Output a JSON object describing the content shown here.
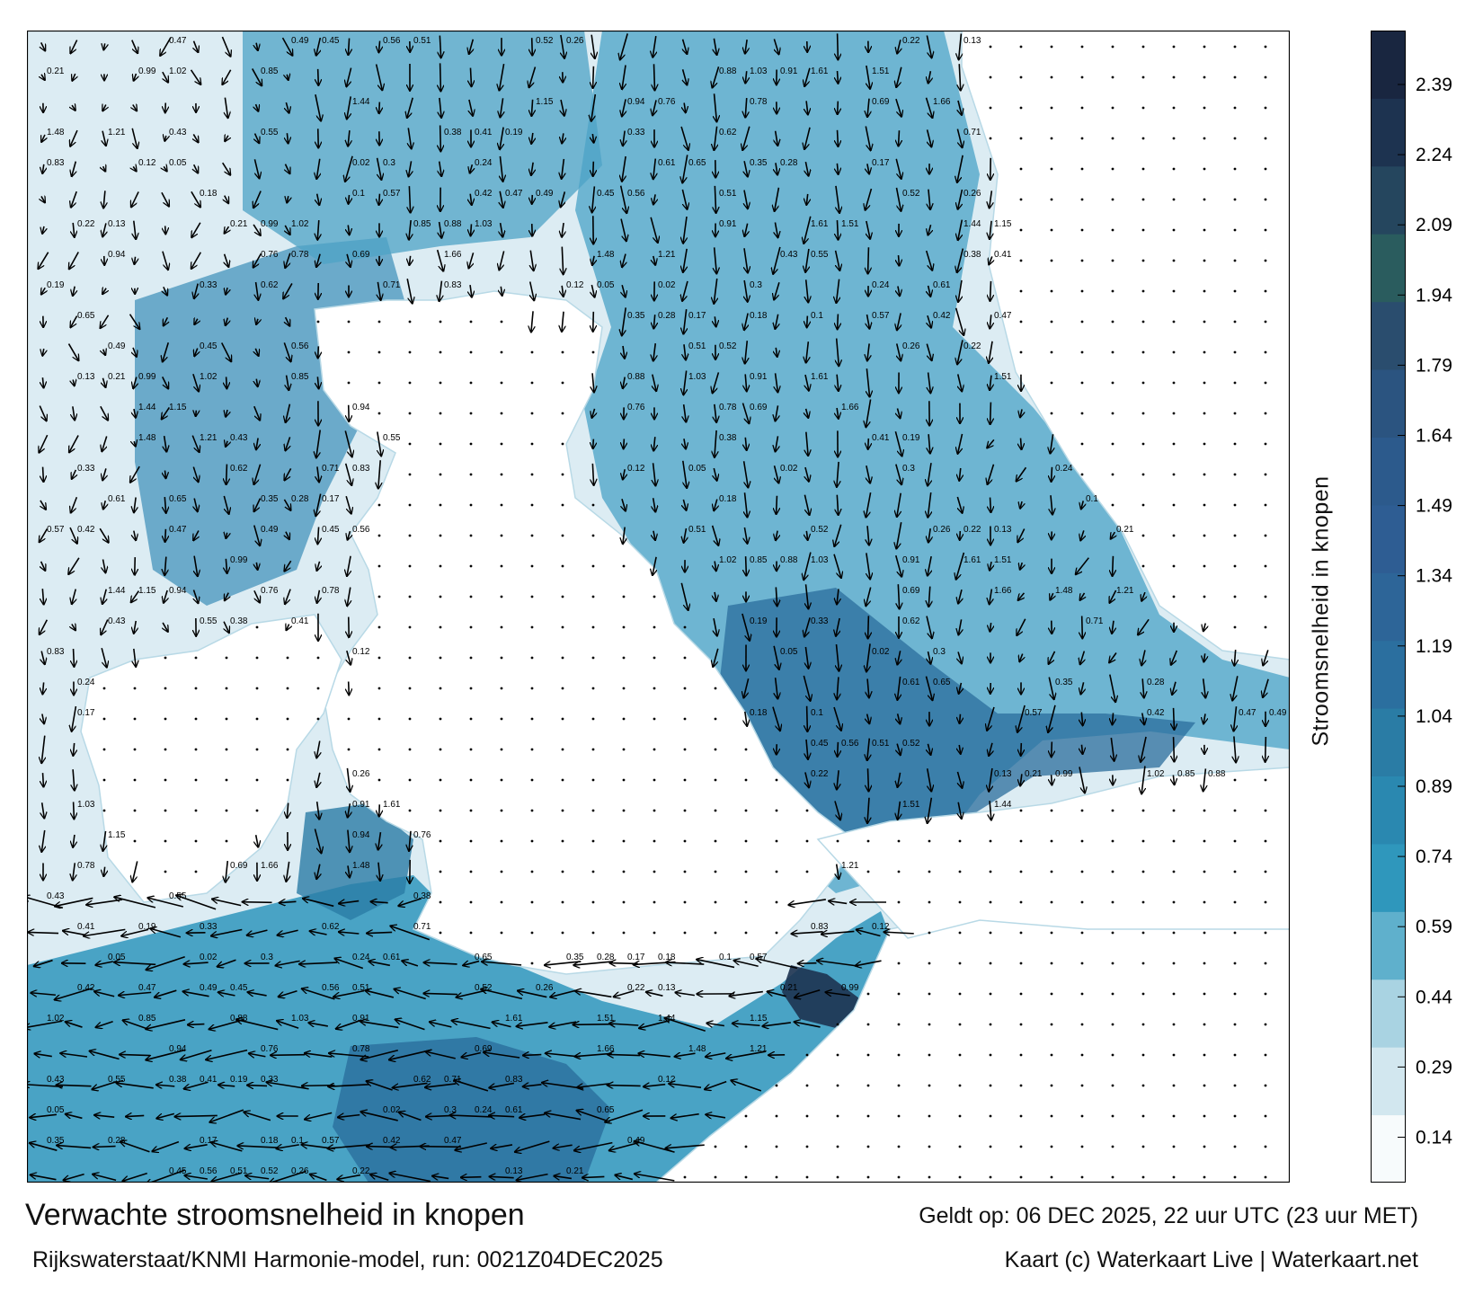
{
  "title": "Verwachte stroomsnelheid in knopen",
  "valid_time": "Geldt op: 06 DEC 2025, 22 uur UTC (23 uur MET)",
  "model_run": "Rijkswaterstaat/KNMI Harmonie-model, run: 0021Z04DEC2025",
  "credit": "Kaart (c) Waterkaart Live | Waterkaart.net",
  "colorbar": {
    "label": "Stroomsnelheid in knopen",
    "ticks": [
      "2.39",
      "2.24",
      "2.09",
      "1.94",
      "1.79",
      "1.64",
      "1.49",
      "1.34",
      "1.19",
      "1.04",
      "0.89",
      "0.74",
      "0.59",
      "0.44",
      "0.29",
      "0.14"
    ],
    "colors": [
      "#f7fbfc",
      "#d2e7ef",
      "#a9d3e2",
      "#5fb0cc",
      "#2f97bc",
      "#2a88b0",
      "#2a7ca5",
      "#2b6f9f",
      "#2d6598",
      "#2e5d93",
      "#2c5a8c",
      "#2b5480",
      "#2a4d6e",
      "#2a5c5e",
      "#25465e",
      "#1d3350",
      "#192640"
    ]
  },
  "map": {
    "land_color": "#ffffff",
    "sea_light": "#dcecf3",
    "sea_mid": "#5aaccb",
    "sea_dark": "#2b6e9c",
    "sea_deep": "#1d3350",
    "arrow_color": "#000000",
    "sample_values": [
      "0.47",
      "0.49",
      "0.45",
      "0.56",
      "0.51",
      "0.52",
      "0.26",
      "0.22",
      "0.13",
      "0.21",
      "0.99",
      "1.02",
      "0.85",
      "0.88",
      "1.03",
      "0.91",
      "1.61",
      "1.51",
      "1.44",
      "1.15",
      "0.94",
      "0.76",
      "0.78",
      "0.69",
      "1.66",
      "1.48",
      "1.21",
      "0.43",
      "0.55",
      "0.38",
      "0.41",
      "0.19",
      "0.33",
      "0.62",
      "0.71",
      "0.83",
      "0.12",
      "0.05",
      "0.02",
      "0.3",
      "0.24",
      "0.61",
      "0.65",
      "0.35",
      "0.28",
      "0.17",
      "0.18",
      "0.1",
      "0.57",
      "0.42"
    ]
  }
}
